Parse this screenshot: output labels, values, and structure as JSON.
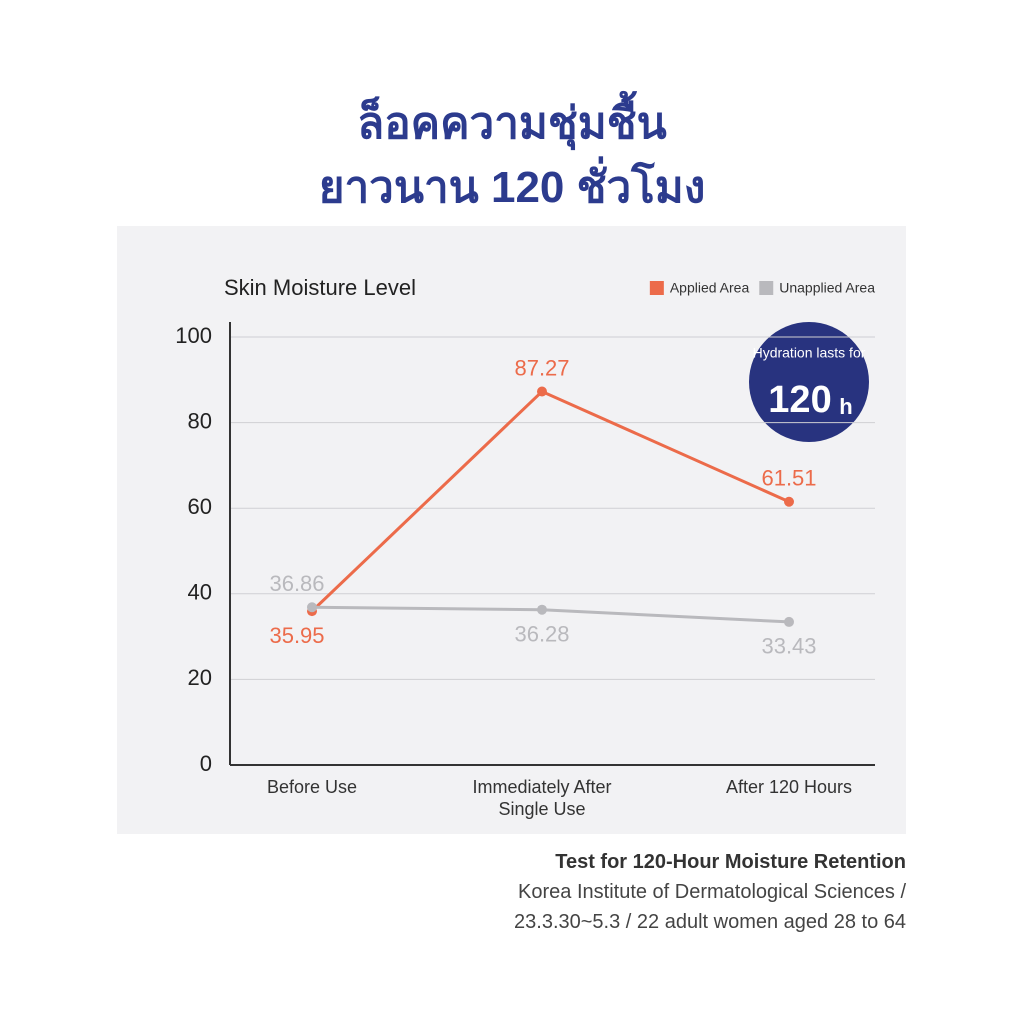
{
  "headline": [
    "ล็อคความชุ่มชื้น",
    "ยาวนาน 120 ชั่วโมง"
  ],
  "chart_data": {
    "type": "line",
    "title": "Skin Moisture Level",
    "categories": [
      "Before Use",
      "Immediately After Single Use",
      "After 120 Hours"
    ],
    "series": [
      {
        "name": "Applied Area",
        "color": "#ec6b4a",
        "values": [
          35.95,
          87.27,
          61.51
        ]
      },
      {
        "name": "Unapplied Area",
        "color": "#b9b9bd",
        "values": [
          36.86,
          36.28,
          33.43
        ]
      }
    ],
    "ylim": [
      0,
      100
    ],
    "yticks": [
      0,
      20,
      40,
      60,
      80,
      100
    ],
    "grid": true,
    "legend": "top-right"
  },
  "badge": {
    "text": "Hydration lasts for",
    "number": "120",
    "unit": "h"
  },
  "footnote": {
    "title": "Test for 120-Hour Moisture Retention",
    "lines": [
      "Korea Institute of Dermatological Sciences /",
      "23.3.30~5.3 / 22 adult women aged 28 to 64"
    ]
  }
}
